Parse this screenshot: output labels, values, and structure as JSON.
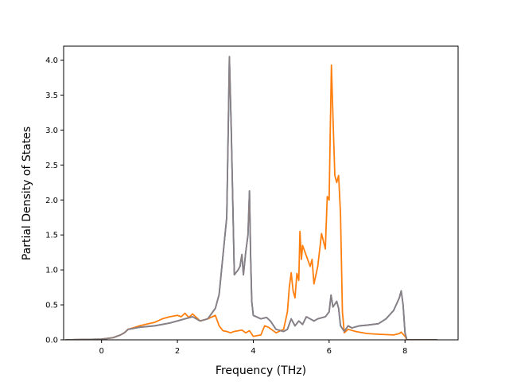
{
  "chart_data": {
    "type": "line",
    "xlabel": "Frequency (THz)",
    "ylabel": "Partial Density of States",
    "xlim": [
      -1.0,
      9.4
    ],
    "ylim": [
      0.0,
      4.2
    ],
    "xticks": [
      "0",
      "2",
      "4",
      "6",
      "8"
    ],
    "yticks": [
      "0.0",
      "0.5",
      "1.0",
      "1.5",
      "2.0",
      "2.5",
      "3.0",
      "3.5",
      "4.0"
    ],
    "grid": false,
    "legend": "none",
    "series": [
      {
        "color": "#1f77b4",
        "points": [
          [
            -0.95,
            0
          ],
          [
            0,
            0.01
          ],
          [
            0.3,
            0.03
          ],
          [
            0.5,
            0.07
          ],
          [
            0.6,
            0.1
          ],
          [
            0.7,
            0.15
          ],
          [
            1.0,
            0.18
          ],
          [
            1.4,
            0.2
          ],
          [
            1.8,
            0.24
          ],
          [
            2.0,
            0.27
          ],
          [
            2.2,
            0.3
          ],
          [
            2.4,
            0.33
          ],
          [
            2.6,
            0.27
          ],
          [
            2.8,
            0.3
          ],
          [
            3.0,
            0.45
          ],
          [
            3.1,
            0.65
          ],
          [
            3.2,
            1.2
          ],
          [
            3.3,
            1.75
          ],
          [
            3.34,
            3.0
          ],
          [
            3.37,
            4.05
          ],
          [
            3.42,
            3.0
          ],
          [
            3.5,
            0.93
          ],
          [
            3.6,
            1.0
          ],
          [
            3.65,
            1.05
          ],
          [
            3.7,
            1.22
          ],
          [
            3.74,
            0.93
          ],
          [
            3.8,
            1.25
          ],
          [
            3.86,
            1.5
          ],
          [
            3.9,
            2.13
          ],
          [
            3.93,
            1.2
          ],
          [
            3.96,
            0.55
          ],
          [
            4.0,
            0.35
          ],
          [
            4.2,
            0.3
          ],
          [
            4.35,
            0.32
          ],
          [
            4.45,
            0.27
          ],
          [
            4.6,
            0.15
          ],
          [
            4.8,
            0.12
          ],
          [
            4.9,
            0.15
          ],
          [
            5.0,
            0.3
          ],
          [
            5.1,
            0.2
          ],
          [
            5.2,
            0.27
          ],
          [
            5.3,
            0.22
          ],
          [
            5.4,
            0.33
          ],
          [
            5.6,
            0.27
          ],
          [
            5.7,
            0.3
          ],
          [
            5.9,
            0.33
          ],
          [
            6.0,
            0.4
          ],
          [
            6.05,
            0.64
          ],
          [
            6.1,
            0.47
          ],
          [
            6.2,
            0.55
          ],
          [
            6.25,
            0.45
          ],
          [
            6.3,
            0.2
          ],
          [
            6.4,
            0.12
          ],
          [
            6.5,
            0.2
          ],
          [
            6.6,
            0.17
          ],
          [
            6.8,
            0.2
          ],
          [
            7.0,
            0.21
          ],
          [
            7.3,
            0.23
          ],
          [
            7.5,
            0.3
          ],
          [
            7.7,
            0.42
          ],
          [
            7.85,
            0.6
          ],
          [
            7.9,
            0.7
          ],
          [
            7.95,
            0.5
          ],
          [
            8.0,
            0.1
          ],
          [
            8.05,
            0.0
          ],
          [
            8.85,
            0.0
          ]
        ]
      },
      {
        "color": "#ff7f0e",
        "points": [
          [
            -0.95,
            0
          ],
          [
            0,
            0.01
          ],
          [
            0.3,
            0.03
          ],
          [
            0.5,
            0.07
          ],
          [
            0.6,
            0.1
          ],
          [
            0.7,
            0.15
          ],
          [
            1.0,
            0.2
          ],
          [
            1.4,
            0.25
          ],
          [
            1.6,
            0.3
          ],
          [
            1.8,
            0.33
          ],
          [
            2.0,
            0.35
          ],
          [
            2.1,
            0.33
          ],
          [
            2.2,
            0.38
          ],
          [
            2.3,
            0.32
          ],
          [
            2.4,
            0.37
          ],
          [
            2.6,
            0.27
          ],
          [
            2.8,
            0.3
          ],
          [
            3.0,
            0.35
          ],
          [
            3.1,
            0.2
          ],
          [
            3.2,
            0.13
          ],
          [
            3.3,
            0.12
          ],
          [
            3.4,
            0.1
          ],
          [
            3.5,
            0.12
          ],
          [
            3.7,
            0.14
          ],
          [
            3.8,
            0.1
          ],
          [
            3.9,
            0.13
          ],
          [
            4.0,
            0.05
          ],
          [
            4.2,
            0.07
          ],
          [
            4.3,
            0.2
          ],
          [
            4.4,
            0.18
          ],
          [
            4.6,
            0.1
          ],
          [
            4.8,
            0.15
          ],
          [
            4.9,
            0.4
          ],
          [
            4.95,
            0.75
          ],
          [
            5.0,
            0.96
          ],
          [
            5.05,
            0.7
          ],
          [
            5.1,
            0.6
          ],
          [
            5.15,
            0.95
          ],
          [
            5.2,
            0.85
          ],
          [
            5.23,
            1.55
          ],
          [
            5.27,
            1.15
          ],
          [
            5.3,
            1.35
          ],
          [
            5.4,
            1.2
          ],
          [
            5.5,
            1.05
          ],
          [
            5.55,
            1.15
          ],
          [
            5.6,
            0.8
          ],
          [
            5.7,
            1.05
          ],
          [
            5.8,
            1.52
          ],
          [
            5.9,
            1.3
          ],
          [
            5.95,
            2.05
          ],
          [
            6.0,
            2.0
          ],
          [
            6.03,
            3.0
          ],
          [
            6.06,
            3.93
          ],
          [
            6.1,
            3.2
          ],
          [
            6.15,
            2.35
          ],
          [
            6.2,
            2.25
          ],
          [
            6.25,
            2.35
          ],
          [
            6.3,
            1.8
          ],
          [
            6.35,
            0.4
          ],
          [
            6.4,
            0.1
          ],
          [
            6.5,
            0.15
          ],
          [
            6.7,
            0.12
          ],
          [
            7.0,
            0.09
          ],
          [
            7.3,
            0.08
          ],
          [
            7.7,
            0.07
          ],
          [
            7.85,
            0.09
          ],
          [
            7.9,
            0.11
          ],
          [
            8.0,
            0.05
          ],
          [
            8.05,
            0.0
          ],
          [
            8.85,
            0.0
          ]
        ]
      },
      {
        "color": "#8c7f82",
        "points": [
          [
            -0.95,
            0
          ],
          [
            0,
            0.01
          ],
          [
            0.3,
            0.03
          ],
          [
            0.5,
            0.07
          ],
          [
            0.6,
            0.1
          ],
          [
            0.7,
            0.15
          ],
          [
            1.0,
            0.18
          ],
          [
            1.4,
            0.2
          ],
          [
            1.8,
            0.24
          ],
          [
            2.0,
            0.27
          ],
          [
            2.2,
            0.3
          ],
          [
            2.4,
            0.33
          ],
          [
            2.6,
            0.27
          ],
          [
            2.8,
            0.3
          ],
          [
            3.0,
            0.45
          ],
          [
            3.1,
            0.65
          ],
          [
            3.2,
            1.2
          ],
          [
            3.3,
            1.75
          ],
          [
            3.34,
            3.0
          ],
          [
            3.37,
            4.05
          ],
          [
            3.42,
            3.0
          ],
          [
            3.5,
            0.93
          ],
          [
            3.6,
            1.0
          ],
          [
            3.65,
            1.05
          ],
          [
            3.7,
            1.22
          ],
          [
            3.74,
            0.93
          ],
          [
            3.8,
            1.25
          ],
          [
            3.86,
            1.5
          ],
          [
            3.9,
            2.13
          ],
          [
            3.93,
            1.2
          ],
          [
            3.96,
            0.55
          ],
          [
            4.0,
            0.35
          ],
          [
            4.2,
            0.3
          ],
          [
            4.35,
            0.32
          ],
          [
            4.45,
            0.27
          ],
          [
            4.6,
            0.15
          ],
          [
            4.8,
            0.12
          ],
          [
            4.9,
            0.15
          ],
          [
            5.0,
            0.3
          ],
          [
            5.1,
            0.2
          ],
          [
            5.2,
            0.27
          ],
          [
            5.3,
            0.22
          ],
          [
            5.4,
            0.33
          ],
          [
            5.6,
            0.27
          ],
          [
            5.7,
            0.3
          ],
          [
            5.9,
            0.33
          ],
          [
            6.0,
            0.4
          ],
          [
            6.05,
            0.64
          ],
          [
            6.1,
            0.47
          ],
          [
            6.2,
            0.55
          ],
          [
            6.25,
            0.45
          ],
          [
            6.3,
            0.2
          ],
          [
            6.4,
            0.12
          ],
          [
            6.5,
            0.2
          ],
          [
            6.6,
            0.17
          ],
          [
            6.8,
            0.2
          ],
          [
            7.0,
            0.21
          ],
          [
            7.3,
            0.23
          ],
          [
            7.5,
            0.3
          ],
          [
            7.7,
            0.42
          ],
          [
            7.85,
            0.6
          ],
          [
            7.9,
            0.7
          ],
          [
            7.95,
            0.5
          ],
          [
            8.0,
            0.1
          ],
          [
            8.05,
            0.0
          ],
          [
            8.85,
            0.0
          ]
        ]
      }
    ]
  }
}
